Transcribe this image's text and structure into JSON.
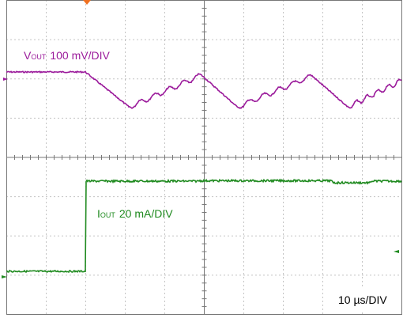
{
  "traces": {
    "vout": {
      "symbol": "V",
      "subscript": "OUT",
      "scale": "100 mV/DIV"
    },
    "iout": {
      "symbol": "I",
      "subscript": "OUT",
      "scale": "20 mA/DIV"
    }
  },
  "timebase": "10 µs/DIV"
}
